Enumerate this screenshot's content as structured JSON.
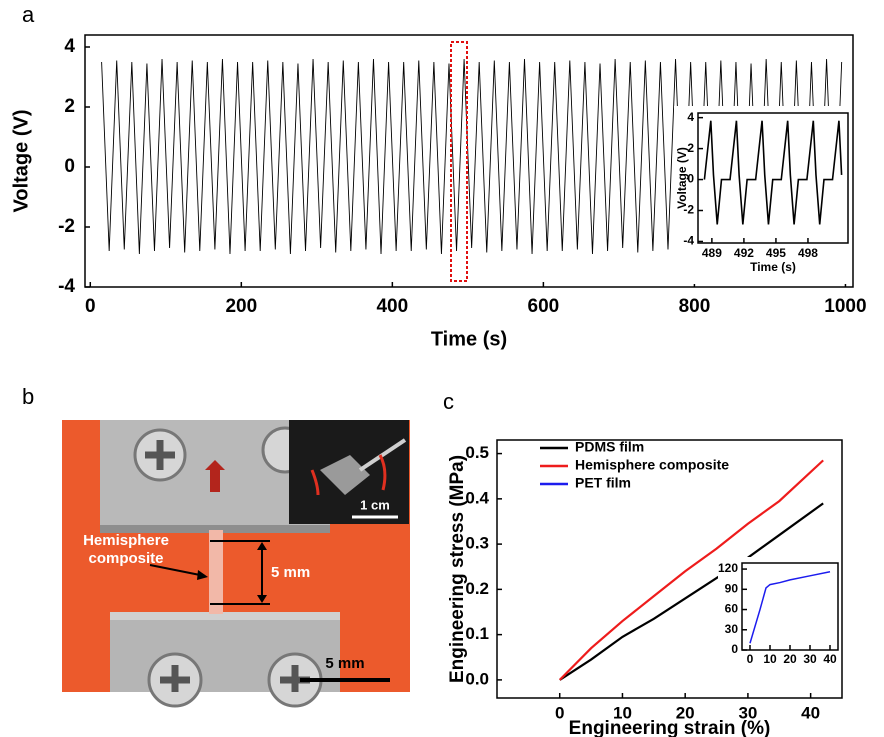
{
  "panel_labels": [
    "a",
    "b",
    "c"
  ],
  "photo": {
    "specimen_label": [
      "Hemisphere",
      "composite"
    ],
    "gauge_length": "5 mm",
    "inset_scale": "1 cm",
    "scale_bar": "5 mm"
  },
  "chart_data": [
    {
      "type": "line",
      "xlabel": "Time (s)",
      "ylabel": "Voltage (V)",
      "xlim": [
        -7,
        1010
      ],
      "xticks": [
        0,
        200,
        400,
        600,
        800,
        1000
      ],
      "ylim": [
        -4,
        4.4
      ],
      "yticks": [
        -4,
        -2,
        0,
        2,
        4
      ],
      "x": [
        15,
        25,
        35,
        45,
        55,
        65,
        75,
        85,
        95,
        105,
        115,
        125,
        135,
        145,
        155,
        165,
        175,
        185,
        195,
        205,
        215,
        225,
        235,
        245,
        255,
        265,
        275,
        285,
        295,
        305,
        315,
        325,
        335,
        345,
        355,
        365,
        375,
        385,
        395,
        405,
        415,
        425,
        435,
        445,
        455,
        465,
        475,
        485,
        495,
        505,
        515,
        525,
        535,
        545,
        555,
        565,
        575,
        585,
        595,
        605,
        615,
        625,
        635,
        645,
        655,
        665,
        675,
        685,
        695,
        705,
        715,
        725,
        735,
        745,
        755,
        765,
        775,
        785,
        795,
        805,
        815,
        825,
        835,
        845,
        855,
        865,
        875,
        885,
        895,
        905,
        915,
        925,
        935,
        945,
        955,
        965,
        975,
        985,
        995
      ],
      "series": [
        {
          "color": "#000000",
          "values": [
            3.5,
            -2.8,
            3.55,
            -2.75,
            3.5,
            -2.9,
            3.45,
            -2.8,
            3.6,
            -2.7,
            3.5,
            -2.85,
            3.55,
            -2.8,
            3.5,
            -2.75,
            3.6,
            -2.9,
            3.5,
            -2.8,
            3.5,
            -2.8,
            3.55,
            -2.75,
            3.5,
            -2.9,
            3.45,
            -2.8,
            3.6,
            -2.7,
            3.5,
            -2.85,
            3.55,
            -2.8,
            3.5,
            -2.75,
            3.6,
            -2.9,
            3.5,
            -2.8,
            3.5,
            -2.8,
            3.55,
            -2.75,
            3.5,
            -2.9,
            3.45,
            -2.8,
            3.6,
            -2.7,
            3.5,
            -2.85,
            3.55,
            -2.8,
            3.5,
            -2.75,
            3.6,
            -2.9,
            3.5,
            -2.8,
            3.5,
            -2.8,
            3.55,
            -2.75,
            3.5,
            -2.9,
            3.45,
            -2.8,
            3.6,
            -2.7,
            3.5,
            -2.85,
            3.55,
            -2.8,
            3.5,
            -2.75,
            3.6,
            -2.9,
            3.5,
            -2.8,
            3.5,
            -2.8,
            3.55,
            -2.75,
            3.5,
            -2.9,
            3.45,
            -2.8,
            3.6,
            -2.7,
            3.5,
            -2.85,
            3.55,
            -2.8,
            3.5,
            -2.75,
            3.6,
            -2.9,
            3.5
          ]
        }
      ]
    },
    {
      "type": "line",
      "xlabel": "Time (s)",
      "ylabel": "Voltage (V)",
      "xlim": [
        487.7,
        501.75
      ],
      "xticks": [
        489,
        492,
        495,
        498
      ],
      "ylim": [
        -4.1,
        4.3
      ],
      "yticks": [
        -4,
        -2,
        0,
        2,
        4
      ],
      "x": [
        488.3,
        488.9,
        489.15,
        489.5,
        489.9,
        490.7,
        491.3,
        491.55,
        491.9,
        492.3,
        493.1,
        493.7,
        493.95,
        494.3,
        494.7,
        495.5,
        496.1,
        496.35,
        496.7,
        497.1,
        497.9,
        498.5,
        498.75,
        499.1,
        499.5,
        500.3,
        500.9,
        501.15
      ],
      "series": [
        {
          "color": "#000000",
          "values": [
            0,
            3.8,
            0.3,
            -2.9,
            0,
            0,
            3.8,
            0.3,
            -2.9,
            0,
            0,
            3.8,
            0.3,
            -2.9,
            0,
            0,
            3.8,
            0.3,
            -2.9,
            0,
            0,
            3.8,
            0.3,
            -2.9,
            0,
            0,
            3.8,
            0.3
          ]
        }
      ]
    },
    {
      "type": "line",
      "xlabel": "Engineering strain (%)",
      "ylabel": "Engineering stress (MPa)",
      "xlim": [
        -10,
        45
      ],
      "xticks": [
        0,
        10,
        20,
        30,
        40
      ],
      "ylim": [
        -0.04,
        0.53
      ],
      "yticks": [
        {
          "value": 0,
          "label": "0.0"
        },
        0.1,
        0.2,
        0.3,
        0.4,
        0.5
      ],
      "x": [
        0,
        5,
        10,
        15,
        20,
        25,
        30,
        35,
        42
      ],
      "series": [
        {
          "name": "PDMS film",
          "color": "#000000",
          "values": [
            0,
            0.045,
            0.095,
            0.135,
            0.18,
            0.225,
            0.27,
            0.32,
            0.39
          ]
        },
        {
          "name": "Hemisphere composite",
          "color": "#ee1c1c",
          "values": [
            0,
            0.07,
            0.13,
            0.185,
            0.24,
            0.29,
            0.345,
            0.395,
            0.485
          ]
        }
      ]
    },
    {
      "type": "line",
      "xlim": [
        -4,
        44
      ],
      "xticks": [
        0,
        10,
        20,
        30,
        40
      ],
      "ylim": [
        0,
        129
      ],
      "yticks": [
        0,
        30,
        60,
        90,
        120
      ],
      "x": [
        0,
        5,
        8,
        10,
        15,
        20,
        30,
        40
      ],
      "series": [
        {
          "name": "PET film",
          "color": "#1c1cee",
          "values": [
            10,
            60,
            92,
            97,
            100,
            104,
            110,
            116
          ]
        }
      ]
    }
  ]
}
